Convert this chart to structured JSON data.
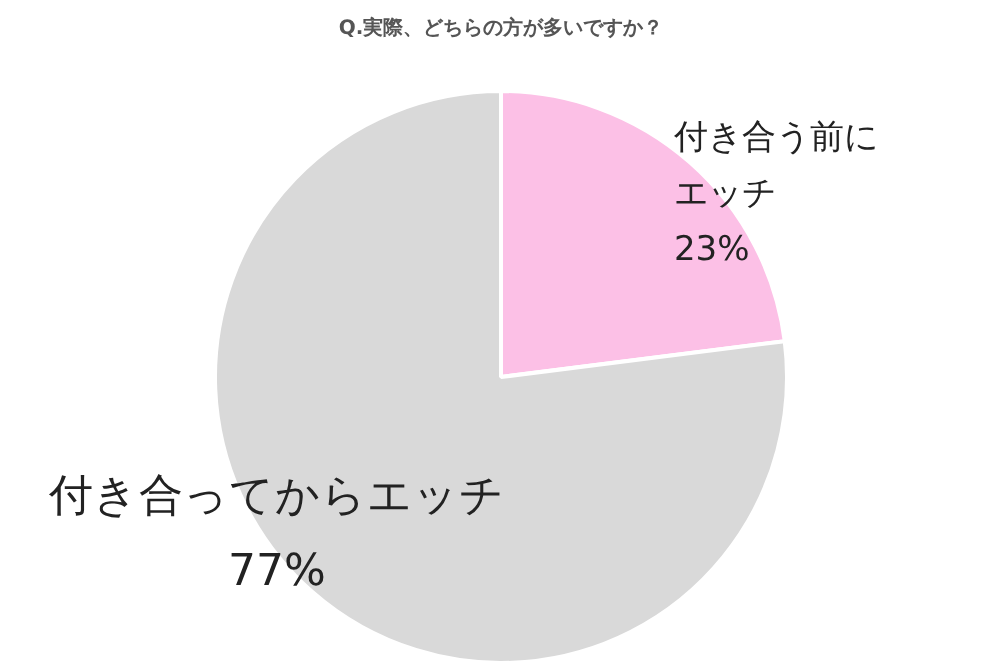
{
  "chart_data": {
    "type": "pie",
    "title": "Q.実際、どちらの方が多いですか？",
    "categories": [
      "付き合う前にエッチ",
      "付き合ってからエッチ"
    ],
    "values": [
      23,
      77
    ],
    "colors": [
      "#fcc0e6",
      "#d9d9d9"
    ],
    "value_labels": [
      "23%",
      "77%"
    ]
  }
}
